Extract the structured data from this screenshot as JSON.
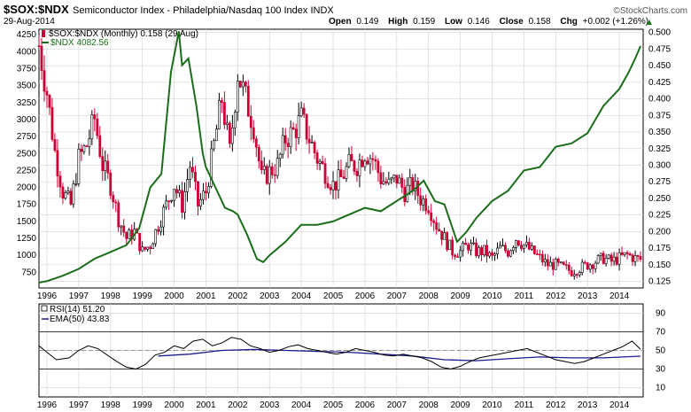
{
  "header": {
    "symbol": "$SOX:$NDX",
    "description": "Semiconductor Index - Philadelphia/Nasdaq 100 Index  INDX",
    "date": "29-Aug-2014",
    "brand": "©StockCharts.com",
    "open_label": "Open",
    "open": "0.149",
    "high_label": "High",
    "high": "0.159",
    "low_label": "Low",
    "low": "0.146",
    "close_label": "Close",
    "close": "0.158",
    "chg_label": "Chg",
    "chg": "+0.002 (+1.26%)",
    "chg_arrow": "▲"
  },
  "legend": {
    "main": "$SOX:$NDX (Monthly) 0.158 (29 Aug)",
    "ndx": "$NDX 4082.56",
    "rsi": "RSI(14) 51.20",
    "ema": "EMA(50) 43.83"
  },
  "colors": {
    "up": "#000000",
    "down": "#cc0033",
    "ndx": "#1a6e1a",
    "rsi": "#000000",
    "ema": "#1c1c8c",
    "rsi_fill_low": "#8b2a2a",
    "grid": "#d8d8d8",
    "axis": "#000000",
    "chg": "#1a7a1a"
  },
  "chart_data": [
    {
      "type": "line",
      "title": "$SOX:$NDX (Monthly)",
      "x_ticks": [
        "1996",
        "1997",
        "1998",
        "1999",
        "2000",
        "2001",
        "2002",
        "2003",
        "2004",
        "2005",
        "2006",
        "2007",
        "2008",
        "2009",
        "2010",
        "2011",
        "2012",
        "2013",
        "2014"
      ],
      "x_range": [
        1995.75,
        2014.75
      ],
      "right_axis_ticks": [
        "0.500",
        "0.475",
        "0.450",
        "0.425",
        "0.400",
        "0.375",
        "0.350",
        "0.325",
        "0.300",
        "0.275",
        "0.250",
        "0.225",
        "0.200",
        "0.175",
        "0.150",
        "0.125"
      ],
      "right_axis_range": [
        0.115,
        0.505
      ],
      "left_axis_ticks": [
        "4250",
        "4000",
        "3750",
        "3500",
        "3250",
        "3000",
        "2750",
        "2500",
        "2250",
        "2000",
        "1750",
        "1500",
        "1250",
        "1000",
        "750"
      ],
      "left_axis_range": [
        520,
        4330
      ],
      "series": [
        {
          "name": "$SOX:$NDX ratio",
          "axis": "right",
          "x": [
            1995.75,
            1996.0,
            1996.25,
            1996.5,
            1996.75,
            1997.0,
            1997.25,
            1997.5,
            1997.75,
            1998.0,
            1998.25,
            1998.5,
            1998.75,
            1999.0,
            1999.25,
            1999.5,
            1999.75,
            2000.0,
            2000.25,
            2000.5,
            2000.75,
            2001.0,
            2001.25,
            2001.5,
            2001.75,
            2002.0,
            2002.25,
            2002.5,
            2002.75,
            2003.0,
            2003.25,
            2003.5,
            2003.75,
            2004.0,
            2004.25,
            2004.5,
            2004.75,
            2005.0,
            2005.25,
            2005.5,
            2005.75,
            2006.0,
            2006.25,
            2006.5,
            2006.75,
            2007.0,
            2007.25,
            2007.5,
            2007.75,
            2008.0,
            2008.25,
            2008.5,
            2008.75,
            2009.0,
            2009.25,
            2009.5,
            2009.75,
            2010.0,
            2010.25,
            2010.5,
            2010.75,
            2011.0,
            2011.25,
            2011.5,
            2011.75,
            2012.0,
            2012.25,
            2012.5,
            2012.75,
            2013.0,
            2013.25,
            2013.5,
            2013.75,
            2014.0,
            2014.25,
            2014.5,
            2014.67
          ],
          "values": [
            0.48,
            0.41,
            0.32,
            0.26,
            0.24,
            0.31,
            0.33,
            0.37,
            0.3,
            0.27,
            0.22,
            0.19,
            0.2,
            0.17,
            0.18,
            0.21,
            0.24,
            0.27,
            0.24,
            0.3,
            0.24,
            0.26,
            0.33,
            0.4,
            0.32,
            0.44,
            0.4,
            0.36,
            0.28,
            0.29,
            0.3,
            0.34,
            0.35,
            0.37,
            0.34,
            0.31,
            0.29,
            0.27,
            0.28,
            0.3,
            0.3,
            0.32,
            0.31,
            0.28,
            0.27,
            0.28,
            0.26,
            0.27,
            0.25,
            0.24,
            0.21,
            0.19,
            0.17,
            0.17,
            0.18,
            0.17,
            0.17,
            0.16,
            0.175,
            0.17,
            0.19,
            0.18,
            0.17,
            0.16,
            0.15,
            0.15,
            0.145,
            0.14,
            0.145,
            0.15,
            0.155,
            0.16,
            0.155,
            0.16,
            0.165,
            0.16,
            0.158
          ]
        },
        {
          "name": "$NDX",
          "axis": "left",
          "x": [
            1995.75,
            1996.0,
            1996.5,
            1997.0,
            1997.5,
            1998.0,
            1998.5,
            1998.9,
            1999.25,
            1999.6,
            1999.9,
            2000.15,
            2000.25,
            2000.45,
            2000.7,
            2000.9,
            2001.0,
            2001.3,
            2001.6,
            2001.85,
            2002.0,
            2002.3,
            2002.6,
            2002.8,
            2003.0,
            2003.5,
            2004.0,
            2004.5,
            2005.0,
            2005.5,
            2006.0,
            2006.5,
            2007.0,
            2007.5,
            2007.85,
            2008.2,
            2008.5,
            2008.9,
            2009.2,
            2009.5,
            2010.0,
            2010.5,
            2011.0,
            2011.5,
            2012.0,
            2012.5,
            2013.0,
            2013.5,
            2014.0,
            2014.3,
            2014.5,
            2014.67
          ],
          "values": [
            600,
            620,
            700,
            800,
            950,
            1050,
            1150,
            1400,
            2000,
            2200,
            3700,
            4300,
            3800,
            3900,
            3200,
            2500,
            2300,
            2000,
            1700,
            1650,
            1600,
            1300,
            950,
            900,
            1000,
            1200,
            1450,
            1450,
            1500,
            1600,
            1700,
            1650,
            1800,
            1950,
            2100,
            1800,
            1750,
            1200,
            1350,
            1550,
            1800,
            1950,
            2250,
            2300,
            2600,
            2650,
            2800,
            3200,
            3450,
            3700,
            3900,
            4082
          ]
        }
      ]
    },
    {
      "type": "line",
      "title": "RSI(14)",
      "y_ticks": [
        "90",
        "70",
        "50",
        "30",
        "10"
      ],
      "y_range": [
        0,
        100
      ],
      "reference_lines": [
        70,
        30
      ],
      "series": [
        {
          "name": "RSI(14)",
          "x": [
            1995.75,
            1996.0,
            1996.3,
            1996.7,
            1997.0,
            1997.3,
            1997.6,
            1997.9,
            1998.2,
            1998.5,
            1998.8,
            1999.1,
            1999.4,
            1999.7,
            2000.0,
            2000.3,
            2000.6,
            2000.9,
            2001.2,
            2001.5,
            2001.8,
            2002.1,
            2002.4,
            2002.7,
            2003.0,
            2003.3,
            2003.6,
            2003.9,
            2004.2,
            2004.5,
            2004.8,
            2005.1,
            2005.4,
            2005.7,
            2006.0,
            2006.3,
            2006.6,
            2006.9,
            2007.2,
            2007.5,
            2007.8,
            2008.1,
            2008.4,
            2008.7,
            2009.0,
            2009.3,
            2009.6,
            2009.9,
            2010.2,
            2010.5,
            2010.8,
            2011.1,
            2011.4,
            2011.7,
            2012.0,
            2012.3,
            2012.6,
            2012.9,
            2013.2,
            2013.5,
            2013.8,
            2014.1,
            2014.4,
            2014.67
          ],
          "values": [
            55,
            48,
            40,
            42,
            50,
            55,
            52,
            45,
            38,
            32,
            30,
            35,
            45,
            48,
            55,
            52,
            60,
            62,
            55,
            58,
            64,
            62,
            55,
            52,
            48,
            50,
            54,
            56,
            52,
            50,
            48,
            46,
            48,
            52,
            50,
            48,
            45,
            44,
            46,
            44,
            42,
            38,
            32,
            30,
            33,
            38,
            42,
            44,
            46,
            48,
            50,
            52,
            48,
            44,
            40,
            38,
            36,
            38,
            42,
            46,
            50,
            54,
            60,
            51.2
          ]
        },
        {
          "name": "EMA(50)",
          "x": [
            1999.5,
            2000.5,
            2001.5,
            2002.5,
            2003.5,
            2004.5,
            2005.5,
            2006.5,
            2007.5,
            2008.5,
            2009.5,
            2010.5,
            2011.5,
            2012.5,
            2013.5,
            2014.67
          ],
          "values": [
            44,
            46,
            50,
            51,
            50,
            49,
            48,
            46,
            44,
            40,
            39,
            41,
            43,
            42,
            42,
            43.83
          ]
        }
      ]
    }
  ]
}
